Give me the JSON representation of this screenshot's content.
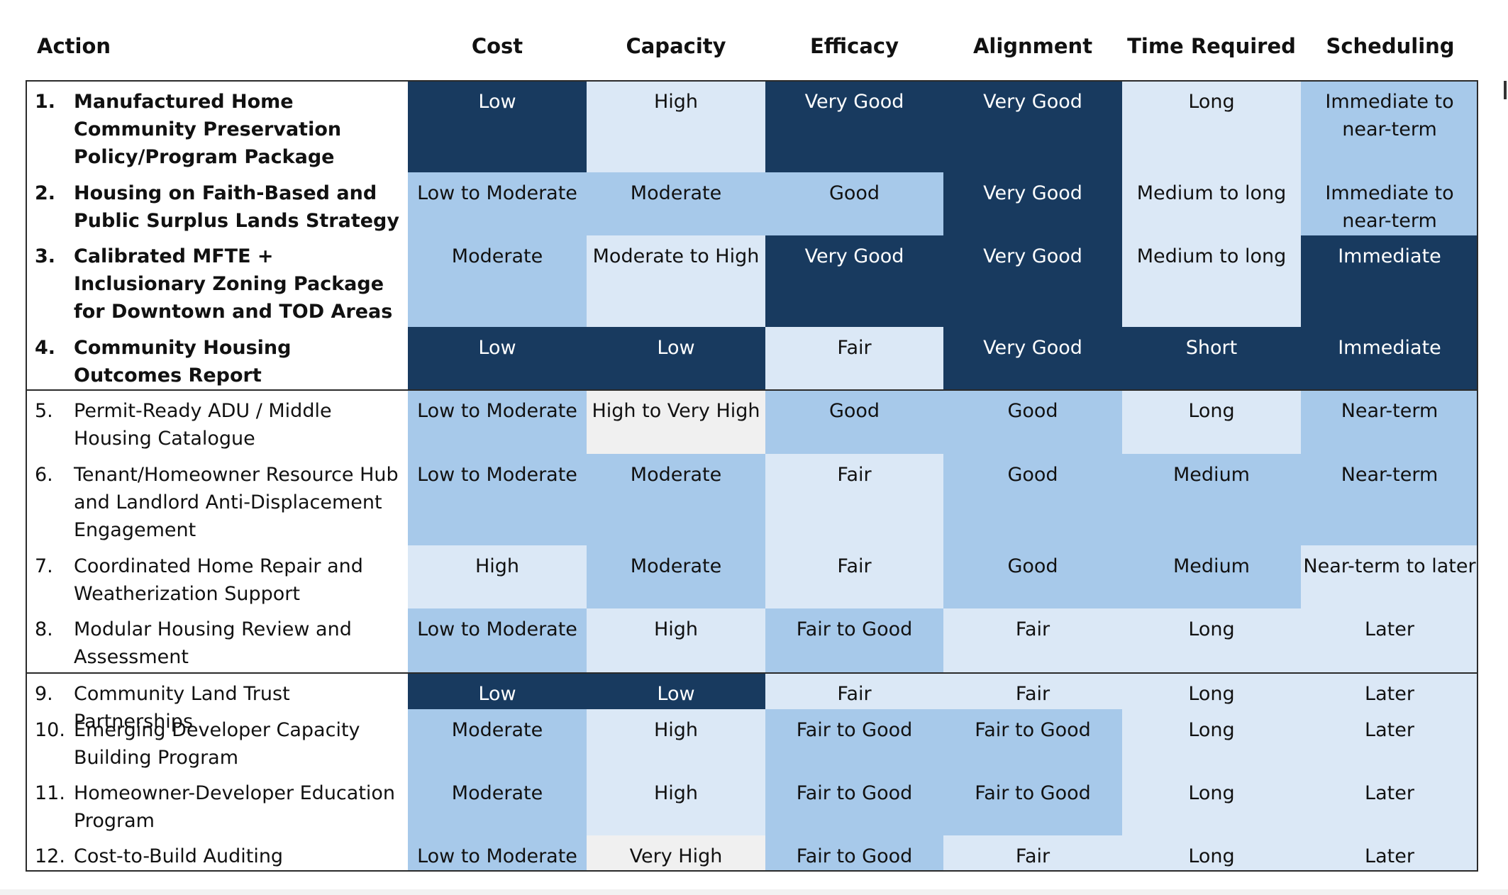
{
  "headers": {
    "action": "Action",
    "columns": [
      "Cost",
      "Capacity",
      "Efficacy",
      "Alignment",
      "Time Required",
      "Scheduling"
    ]
  },
  "colors": {
    "navy": "#183a5f",
    "medium_blue": "#a7c9ea",
    "light_blue": "#dbe8f6",
    "light_gray": "#f0f0f0",
    "border": "#2a2a2a"
  },
  "rows": [
    {
      "number": "1.",
      "bold": true,
      "name": "Manufactured Home Community Preservation Policy/Program Package",
      "cells": [
        {
          "text": "Low",
          "shade": "navy"
        },
        {
          "text": "High",
          "shade": "light_blue"
        },
        {
          "text": "Very Good",
          "shade": "navy"
        },
        {
          "text": "Very Good",
          "shade": "navy"
        },
        {
          "text": "Long",
          "shade": "light_blue"
        },
        {
          "text": "Immediate to near-term",
          "shade": "medium_blue"
        }
      ]
    },
    {
      "number": "2.",
      "bold": true,
      "name": "Housing on Faith-Based and Public Surplus Lands Strategy",
      "cells": [
        {
          "text": "Low to Moderate",
          "shade": "medium_blue"
        },
        {
          "text": "Moderate",
          "shade": "medium_blue"
        },
        {
          "text": "Good",
          "shade": "medium_blue"
        },
        {
          "text": "Very Good",
          "shade": "navy"
        },
        {
          "text": "Medium to long",
          "shade": "light_blue"
        },
        {
          "text": "Immediate to near-term",
          "shade": "medium_blue"
        }
      ]
    },
    {
      "number": "3.",
      "bold": true,
      "name": "Calibrated MFTE + Inclusionary Zoning Package for Downtown and TOD Areas",
      "cells": [
        {
          "text": "Moderate",
          "shade": "medium_blue"
        },
        {
          "text": "Moderate to High",
          "shade": "light_blue"
        },
        {
          "text": "Very Good",
          "shade": "navy"
        },
        {
          "text": "Very Good",
          "shade": "navy"
        },
        {
          "text": "Medium to long",
          "shade": "light_blue"
        },
        {
          "text": "Immediate",
          "shade": "navy"
        }
      ]
    },
    {
      "number": "4.",
      "bold": true,
      "name": "Community Housing Outcomes Report",
      "cells": [
        {
          "text": "Low",
          "shade": "navy"
        },
        {
          "text": "Low",
          "shade": "navy"
        },
        {
          "text": "Fair",
          "shade": "light_blue"
        },
        {
          "text": "Very Good",
          "shade": "navy"
        },
        {
          "text": "Short",
          "shade": "navy"
        },
        {
          "text": "Immediate",
          "shade": "navy"
        }
      ]
    },
    {
      "number": "5.",
      "bold": false,
      "name": "Permit-Ready ADU / Middle Housing Catalogue",
      "cells": [
        {
          "text": "Low to Moderate",
          "shade": "medium_blue"
        },
        {
          "text": "High to Very High",
          "shade": "light_gray"
        },
        {
          "text": "Good",
          "shade": "medium_blue"
        },
        {
          "text": "Good",
          "shade": "medium_blue"
        },
        {
          "text": "Long",
          "shade": "light_blue"
        },
        {
          "text": "Near-term",
          "shade": "medium_blue"
        }
      ]
    },
    {
      "number": "6.",
      "bold": false,
      "name": "Tenant/Homeowner Resource Hub and Landlord Anti-Displacement Engagement",
      "cells": [
        {
          "text": "Low to Moderate",
          "shade": "medium_blue"
        },
        {
          "text": "Moderate",
          "shade": "medium_blue"
        },
        {
          "text": "Fair",
          "shade": "light_blue"
        },
        {
          "text": "Good",
          "shade": "medium_blue"
        },
        {
          "text": "Medium",
          "shade": "medium_blue"
        },
        {
          "text": "Near-term",
          "shade": "medium_blue"
        }
      ]
    },
    {
      "number": "7.",
      "bold": false,
      "name": "Coordinated Home Repair and Weatherization Support",
      "cells": [
        {
          "text": "High",
          "shade": "light_blue"
        },
        {
          "text": "Moderate",
          "shade": "medium_blue"
        },
        {
          "text": "Fair",
          "shade": "light_blue"
        },
        {
          "text": "Good",
          "shade": "medium_blue"
        },
        {
          "text": "Medium",
          "shade": "medium_blue"
        },
        {
          "text": "Near-term to later",
          "shade": "light_blue"
        }
      ]
    },
    {
      "number": "8.",
      "bold": false,
      "name": "Modular Housing Review and Assessment",
      "cells": [
        {
          "text": "Low to Moderate",
          "shade": "medium_blue"
        },
        {
          "text": "High",
          "shade": "light_blue"
        },
        {
          "text": "Fair to Good",
          "shade": "medium_blue"
        },
        {
          "text": "Fair",
          "shade": "light_blue"
        },
        {
          "text": "Long",
          "shade": "light_blue"
        },
        {
          "text": "Later",
          "shade": "light_blue"
        }
      ]
    },
    {
      "number": "9.",
      "bold": false,
      "name": "Community Land Trust Partnerships",
      "cells": [
        {
          "text": "Low",
          "shade": "navy"
        },
        {
          "text": "Low",
          "shade": "navy"
        },
        {
          "text": "Fair",
          "shade": "light_blue"
        },
        {
          "text": "Fair",
          "shade": "light_blue"
        },
        {
          "text": "Long",
          "shade": "light_blue"
        },
        {
          "text": "Later",
          "shade": "light_blue"
        }
      ]
    },
    {
      "number": "10.",
      "bold": false,
      "name": "Emerging Developer Capacity Building Program",
      "cells": [
        {
          "text": "Moderate",
          "shade": "medium_blue"
        },
        {
          "text": "High",
          "shade": "light_blue"
        },
        {
          "text": "Fair to Good",
          "shade": "medium_blue"
        },
        {
          "text": "Fair to Good",
          "shade": "medium_blue"
        },
        {
          "text": "Long",
          "shade": "light_blue"
        },
        {
          "text": "Later",
          "shade": "light_blue"
        }
      ]
    },
    {
      "number": "11.",
      "bold": false,
      "name": "Homeowner-Developer Education Program",
      "cells": [
        {
          "text": "Moderate",
          "shade": "medium_blue"
        },
        {
          "text": "High",
          "shade": "light_blue"
        },
        {
          "text": "Fair to Good",
          "shade": "medium_blue"
        },
        {
          "text": "Fair to Good",
          "shade": "medium_blue"
        },
        {
          "text": "Long",
          "shade": "light_blue"
        },
        {
          "text": "Later",
          "shade": "light_blue"
        }
      ]
    },
    {
      "number": "12.",
      "bold": false,
      "name": "Cost-to-Build Auditing",
      "cells": [
        {
          "text": "Low to Moderate",
          "shade": "medium_blue"
        },
        {
          "text": "Very High",
          "shade": "light_gray"
        },
        {
          "text": "Fair to Good",
          "shade": "medium_blue"
        },
        {
          "text": "Fair",
          "shade": "light_blue"
        },
        {
          "text": "Long",
          "shade": "light_blue"
        },
        {
          "text": "Later",
          "shade": "light_blue"
        }
      ]
    }
  ]
}
